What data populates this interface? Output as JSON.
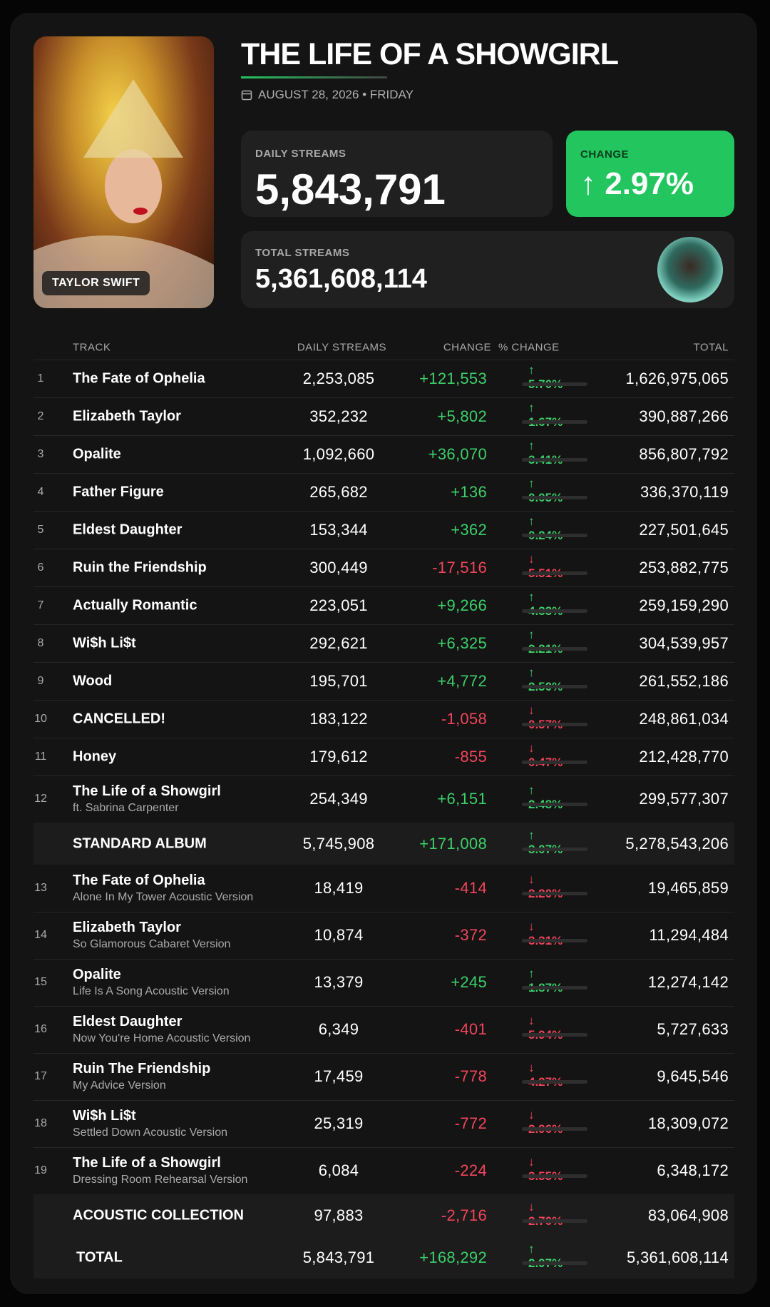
{
  "header": {
    "title": "THE LIFE OF A SHOWGIRL",
    "date": "AUGUST 28, 2026 • FRIDAY",
    "artist": "TAYLOR SWIFT",
    "daily_label": "DAILY STREAMS",
    "daily_value": "5,843,791",
    "change_label": "CHANGE",
    "change_value": "↑ 2.97%",
    "total_label": "TOTAL STREAMS",
    "total_value": "5,361,608,114"
  },
  "table": {
    "columns": [
      "TRACK",
      "DAILY STREAMS",
      "CHANGE",
      "% CHANGE",
      "TOTAL"
    ],
    "rows": [
      {
        "rank": "1",
        "track": "The Fate of Ophelia",
        "daily": "2,253,085",
        "change": "+121,553",
        "pct": "↑ 5.70%",
        "total": "1,626,975,065"
      },
      {
        "rank": "2",
        "track": "Elizabeth Taylor",
        "daily": "352,232",
        "change": "+5,802",
        "pct": "↑ 1.67%",
        "total": "390,887,266"
      },
      {
        "rank": "3",
        "track": "Opalite",
        "daily": "1,092,660",
        "change": "+36,070",
        "pct": "↑ 3.41%",
        "total": "856,807,792"
      },
      {
        "rank": "4",
        "track": "Father Figure",
        "daily": "265,682",
        "change": "+136",
        "pct": "↑ 0.05%",
        "total": "336,370,119"
      },
      {
        "rank": "5",
        "track": "Eldest Daughter",
        "daily": "153,344",
        "change": "+362",
        "pct": "↑ 0.24%",
        "total": "227,501,645"
      },
      {
        "rank": "6",
        "track": "Ruin the Friendship",
        "daily": "300,449",
        "change": "-17,516",
        "pct": "↓ 5.51%",
        "total": "253,882,775"
      },
      {
        "rank": "7",
        "track": "Actually Romantic",
        "daily": "223,051",
        "change": "+9,266",
        "pct": "↑ 4.33%",
        "total": "259,159,290"
      },
      {
        "rank": "8",
        "track": "Wi$h Li$t",
        "daily": "292,621",
        "change": "+6,325",
        "pct": "↑ 2.21%",
        "total": "304,539,957"
      },
      {
        "rank": "9",
        "track": "Wood",
        "daily": "195,701",
        "change": "+4,772",
        "pct": "↑ 2.50%",
        "total": "261,552,186"
      },
      {
        "rank": "10",
        "track": "CANCELLED!",
        "daily": "183,122",
        "change": "-1,058",
        "pct": "↓ 0.57%",
        "total": "248,861,034"
      },
      {
        "rank": "11",
        "track": "Honey",
        "daily": "179,612",
        "change": "-855",
        "pct": "↓ 0.47%",
        "total": "212,428,770"
      },
      {
        "rank": "12",
        "track": "The Life of a Showgirl",
        "sub": "ft. Sabrina Carpenter",
        "daily": "254,349",
        "change": "+6,151",
        "pct": "↑ 2.48%",
        "total": "299,577,307"
      },
      {
        "track": "STANDARD ALBUM",
        "daily": "5,745,908",
        "change": "+171,008",
        "pct": "↑ 3.07%",
        "total": "5,278,543,206"
      },
      {
        "rank": "13",
        "track": "The Fate of Ophelia",
        "sub": "Alone In My Tower Acoustic Version",
        "daily": "18,419",
        "change": "-414",
        "pct": "↓ 2.20%",
        "total": "19,465,859"
      },
      {
        "rank": "14",
        "track": "Elizabeth Taylor",
        "sub": "So Glamorous Cabaret Version",
        "daily": "10,874",
        "change": "-372",
        "pct": "↓ 3.31%",
        "total": "11,294,484"
      },
      {
        "rank": "15",
        "track": "Opalite",
        "sub": "Life Is A Song Acoustic Version",
        "daily": "13,379",
        "change": "+245",
        "pct": "↑ 1.87%",
        "total": "12,274,142"
      },
      {
        "rank": "16",
        "track": "Eldest Daughter",
        "sub": "Now You're Home Acoustic Version",
        "daily": "6,349",
        "change": "-401",
        "pct": "↓ 5.94%",
        "total": "5,727,633"
      },
      {
        "rank": "17",
        "track": "Ruin The Friendship",
        "sub": "My Advice Version",
        "daily": "17,459",
        "change": "-778",
        "pct": "↓ 4.27%",
        "total": "9,645,546"
      },
      {
        "rank": "18",
        "track": "Wi$h Li$t",
        "sub": "Settled Down Acoustic Version",
        "daily": "25,319",
        "change": "-772",
        "pct": "↓ 2.96%",
        "total": "18,309,072"
      },
      {
        "rank": "19",
        "track": "The Life of a Showgirl",
        "sub": "Dressing Room Rehearsal Version",
        "daily": "6,084",
        "change": "-224",
        "pct": "↓ 3.55%",
        "total": "6,348,172"
      },
      {
        "track": "ACOUSTIC COLLECTION",
        "daily": "97,883",
        "change": "-2,716",
        "pct": "↓ 2.70%",
        "total": "83,064,908"
      },
      {
        "track": "TOTAL",
        "daily": "5,843,791",
        "change": "+168,292",
        "pct": "↑ 2.97%",
        "total": "5,361,608,114"
      }
    ]
  }
}
